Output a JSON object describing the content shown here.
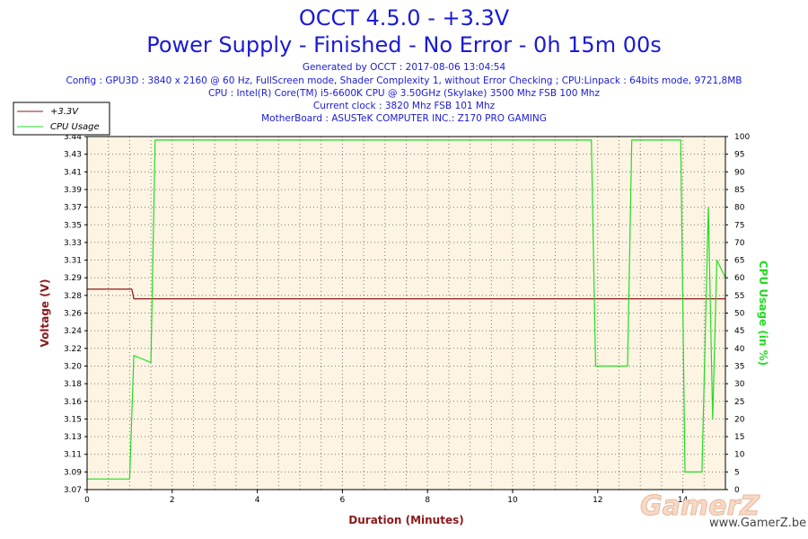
{
  "header": {
    "title": "OCCT 4.5.0 - +3.3V",
    "subtitle": "Power Supply - Finished - No Error - 0h 15m 00s",
    "info_lines": [
      "Generated by OCCT : 2017-08-06 13:04:54",
      "Config : GPU3D : 3840 x 2160 @ 60 Hz, FullScreen mode, Shader Complexity 1, without Error Checking ; CPU:Linpack : 64bits mode, 9721,8MB",
      "CPU : Intel(R) Core(TM) i5-6600K CPU @ 3.50GHz (Skylake) 3500 Mhz FSB 100 Mhz",
      "Current clock : 3820 Mhz FSB 101 Mhz",
      "MotherBoard : ASUSTeK COMPUTER INC.: Z170 PRO GAMING"
    ]
  },
  "watermark": {
    "logo": "GamerZ",
    "url": "www.GamerZ.be"
  },
  "colors": {
    "voltage": "#8b1a1a",
    "cpu": "#22dd22",
    "plot_bg": "#fdf4e3",
    "title": "#1a1ad6"
  },
  "chart_data": {
    "type": "line",
    "xlabel": "Duration (Minutes)",
    "ylabel": "Voltage (V)",
    "ylabel_right": "CPU Usage (in %)",
    "xlim": [
      0,
      15
    ],
    "ylim": [
      3.07,
      3.44
    ],
    "ylim_right": [
      0,
      100
    ],
    "x_ticks": [
      "0",
      "2",
      "4",
      "6",
      "8",
      "10",
      "12",
      "14"
    ],
    "y_ticks": [
      "3.07",
      "3.09",
      "3.11",
      "3.13",
      "3.15",
      "3.16",
      "3.18",
      "3.20",
      "3.22",
      "3.24",
      "3.26",
      "3.28",
      "3.29",
      "3.31",
      "3.33",
      "3.35",
      "3.37",
      "3.39",
      "3.41",
      "3.43",
      "3.44"
    ],
    "y_right_ticks": [
      "0",
      "5",
      "10",
      "15",
      "20",
      "25",
      "30",
      "35",
      "40",
      "45",
      "50",
      "55",
      "60",
      "65",
      "70",
      "75",
      "80",
      "85",
      "90",
      "95",
      "100"
    ],
    "grid": true,
    "legend_position": "top-left",
    "series": [
      {
        "name": "+3.3V",
        "axis": "left",
        "x": [
          0,
          1.05,
          1.1,
          13.95,
          14.0,
          14.7,
          14.75,
          15
        ],
        "values": [
          3.28,
          3.28,
          3.27,
          3.27,
          3.27,
          3.27,
          3.27,
          3.27
        ]
      },
      {
        "name": "CPU Usage",
        "axis": "right",
        "x": [
          0,
          1.0,
          1.1,
          1.5,
          1.6,
          11.85,
          11.95,
          12.7,
          12.8,
          13.95,
          14.05,
          14.45,
          14.6,
          14.7,
          14.8,
          15
        ],
        "values": [
          3,
          3,
          38,
          36,
          99,
          99,
          35,
          35,
          99,
          99,
          5,
          5,
          80,
          20,
          65,
          60
        ]
      }
    ]
  }
}
